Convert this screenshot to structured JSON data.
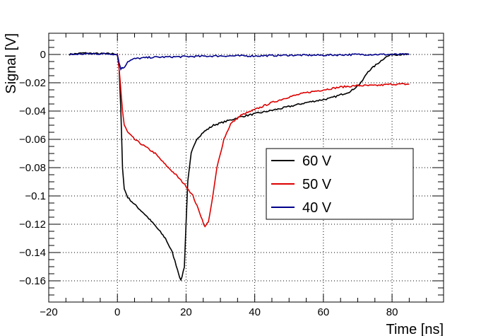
{
  "chart_data": {
    "type": "line",
    "xlabel": "Time [ns]",
    "ylabel": "Signal [V]",
    "xlim": [
      -20,
      95
    ],
    "ylim": [
      -0.175,
      0.015
    ],
    "x_ticks": [
      -20,
      0,
      20,
      40,
      60,
      80
    ],
    "y_ticks": [
      0,
      -0.02,
      -0.04,
      -0.06,
      -0.08,
      -0.1,
      -0.12,
      -0.14,
      -0.16
    ],
    "x_tick_labels": [
      "−20",
      "0",
      "20",
      "40",
      "60",
      "80"
    ],
    "y_tick_labels": [
      "0",
      "−0.02",
      "−0.04",
      "−0.06",
      "−0.08",
      "−0.1",
      "−0.12",
      "−0.14",
      "−0.16"
    ],
    "grid": true,
    "legend_position": "center-right",
    "series": [
      {
        "name": "60 V",
        "color": "#000000",
        "points": [
          [
            -14,
            0
          ],
          [
            -10,
            0.001
          ],
          [
            -5,
            0.0005
          ],
          [
            -1,
            0.0005
          ],
          [
            0,
            0
          ],
          [
            0.5,
            -0.01
          ],
          [
            1,
            -0.04
          ],
          [
            1.5,
            -0.08
          ],
          [
            2,
            -0.095
          ],
          [
            3,
            -0.101
          ],
          [
            5,
            -0.106
          ],
          [
            8,
            -0.113
          ],
          [
            11,
            -0.121
          ],
          [
            14,
            -0.13
          ],
          [
            16,
            -0.14
          ],
          [
            17.5,
            -0.152
          ],
          [
            18.5,
            -0.16
          ],
          [
            19.5,
            -0.15
          ],
          [
            20,
            -0.12
          ],
          [
            20.5,
            -0.09
          ],
          [
            21.5,
            -0.07
          ],
          [
            23,
            -0.06
          ],
          [
            25,
            -0.055
          ],
          [
            28,
            -0.05
          ],
          [
            32,
            -0.047
          ],
          [
            36,
            -0.044
          ],
          [
            42,
            -0.041
          ],
          [
            48,
            -0.038
          ],
          [
            55,
            -0.034
          ],
          [
            62,
            -0.031
          ],
          [
            68,
            -0.026
          ],
          [
            71,
            -0.02
          ],
          [
            73,
            -0.012
          ],
          [
            76,
            -0.006
          ],
          [
            78,
            -0.002
          ],
          [
            80,
            0
          ],
          [
            85,
            0
          ]
        ]
      },
      {
        "name": "50 V",
        "color": "#dd0000",
        "points": [
          [
            0,
            0
          ],
          [
            0.5,
            -0.01
          ],
          [
            1,
            -0.025
          ],
          [
            1.5,
            -0.04
          ],
          [
            2,
            -0.05
          ],
          [
            3,
            -0.055
          ],
          [
            5,
            -0.06
          ],
          [
            8,
            -0.065
          ],
          [
            11,
            -0.07
          ],
          [
            14,
            -0.078
          ],
          [
            17,
            -0.085
          ],
          [
            20,
            -0.093
          ],
          [
            22,
            -0.1
          ],
          [
            24,
            -0.112
          ],
          [
            25.5,
            -0.122
          ],
          [
            26.5,
            -0.118
          ],
          [
            27.5,
            -0.105
          ],
          [
            29,
            -0.08
          ],
          [
            31,
            -0.06
          ],
          [
            33,
            -0.049
          ],
          [
            36,
            -0.043
          ],
          [
            40,
            -0.039
          ],
          [
            45,
            -0.034
          ],
          [
            50,
            -0.03
          ],
          [
            55,
            -0.027
          ],
          [
            60,
            -0.025
          ],
          [
            65,
            -0.023
          ],
          [
            70,
            -0.022
          ],
          [
            75,
            -0.022
          ],
          [
            80,
            -0.021
          ],
          [
            85,
            -0.021
          ]
        ]
      },
      {
        "name": "40 V",
        "color": "#00008b",
        "points": [
          [
            -14,
            0
          ],
          [
            -8,
            0.0005
          ],
          [
            -2,
            0.0005
          ],
          [
            0,
            0
          ],
          [
            0.5,
            -0.006
          ],
          [
            1,
            -0.01
          ],
          [
            2,
            -0.009
          ],
          [
            3,
            -0.005
          ],
          [
            5,
            -0.003
          ],
          [
            10,
            -0.002
          ],
          [
            20,
            -0.0015
          ],
          [
            30,
            -0.001
          ],
          [
            40,
            -0.001
          ],
          [
            50,
            -0.0005
          ],
          [
            60,
            -0.0005
          ],
          [
            70,
            0
          ],
          [
            80,
            0
          ],
          [
            85,
            0
          ]
        ]
      }
    ]
  }
}
